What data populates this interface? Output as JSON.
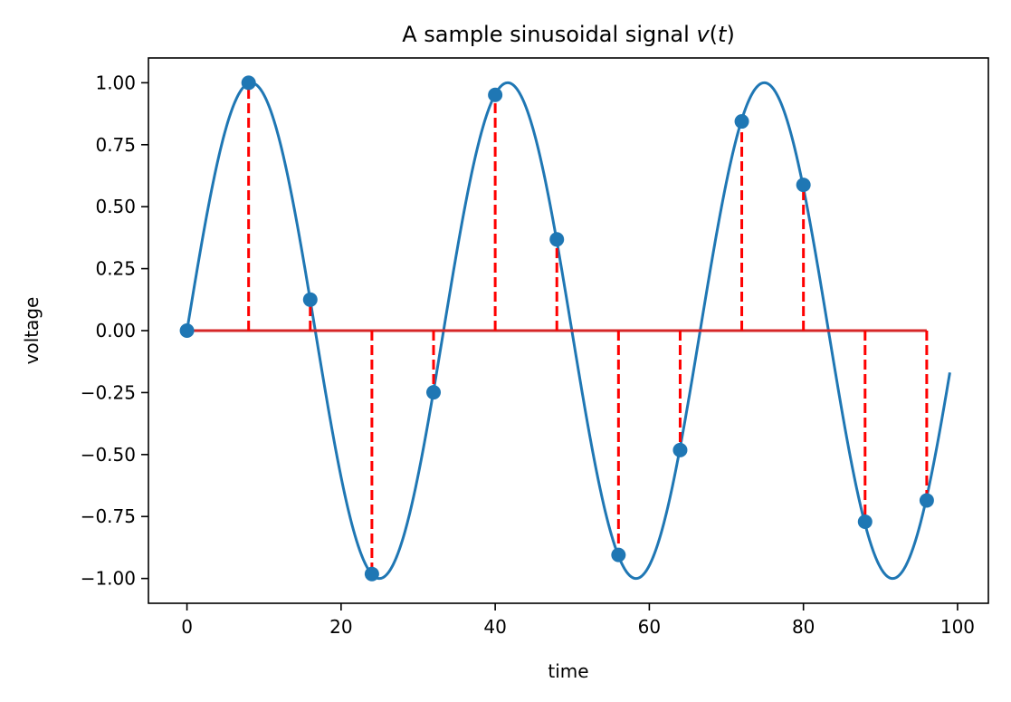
{
  "chart_data": {
    "type": "line",
    "title_prefix": "A sample sinusoidal signal ",
    "title_var": "v",
    "title_open": "(",
    "title_arg": "t",
    "title_close": ")",
    "xlabel": "time",
    "ylabel": "voltage",
    "xlim": [
      -5,
      104
    ],
    "ylim": [
      -1.1,
      1.1
    ],
    "x_ticks": [
      0,
      20,
      40,
      60,
      80,
      100
    ],
    "x_tick_labels": [
      "0",
      "20",
      "40",
      "60",
      "80",
      "100"
    ],
    "y_ticks": [
      1.0,
      0.75,
      0.5,
      0.25,
      0.0,
      -0.25,
      -0.5,
      -0.75,
      -1.0
    ],
    "y_tick_labels": [
      "1.00",
      "0.75",
      "0.50",
      "0.25",
      "0.00",
      "−0.25",
      "−0.50",
      "−0.75",
      "−1.00"
    ],
    "grid": false,
    "continuous_series": {
      "color": "#1f77b4",
      "function": "sin",
      "period": 33.3,
      "amplitude": 1.0,
      "x_start": 0,
      "x_end": 99
    },
    "sampled_series": {
      "color": "#1f77b4",
      "stem_color": "#ff0000",
      "baseline_color": "#d62728",
      "x": [
        0,
        8,
        16,
        24,
        32,
        40,
        48,
        56,
        64,
        72,
        80,
        88,
        96
      ],
      "y": [
        0.0,
        1.0,
        0.125,
        -0.982,
        -0.249,
        0.951,
        0.368,
        -0.905,
        -0.482,
        0.844,
        0.588,
        -0.771,
        -0.685
      ]
    }
  }
}
